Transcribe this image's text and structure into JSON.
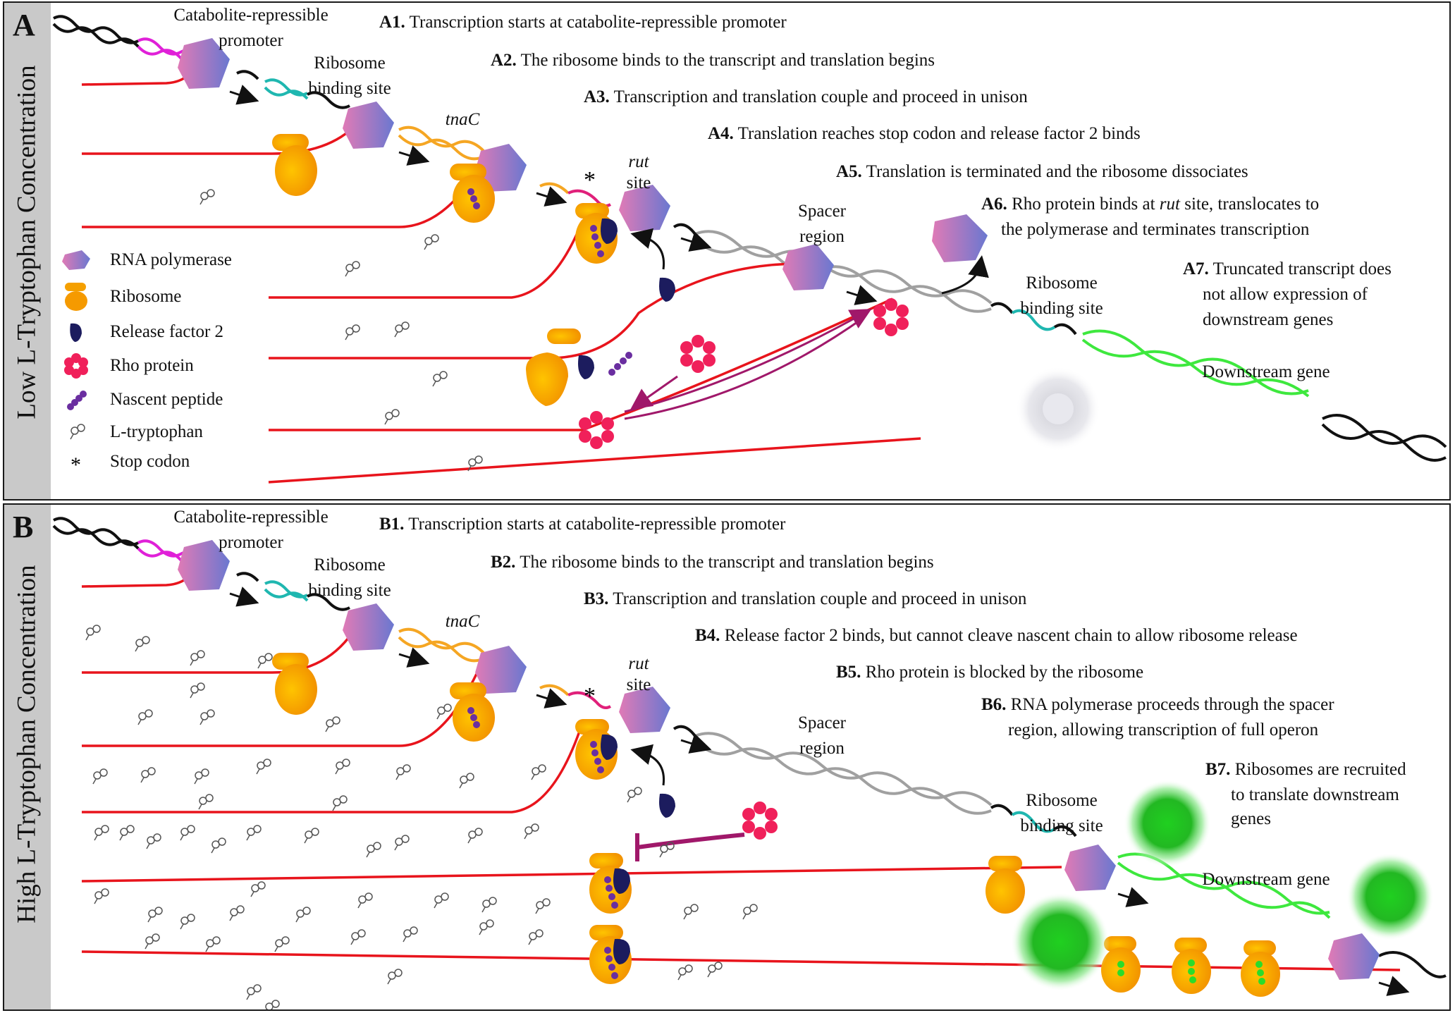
{
  "panel_a": {
    "letter": "A",
    "side_label": "Low L-Tryptophan Concentration",
    "steps": [
      {
        "id": "A1.",
        "text": " Transcription starts at catabolite-repressible promoter"
      },
      {
        "id": "A2.",
        "text": " The ribosome binds to the transcript and translation begins"
      },
      {
        "id": "A3.",
        "text": " Transcription and translation couple and proceed in unison"
      },
      {
        "id": "A4.",
        "text": " Translation reaches stop codon and release factor 2 binds"
      },
      {
        "id": "A5.",
        "text": " Translation is terminated and the ribosome dissociates"
      },
      {
        "id": "A6.",
        "pre": " Rho protein binds at ",
        "italic": "rut",
        "post": " site, translocates to",
        "line2": "the polymerase and terminates transcription"
      },
      {
        "id": "A7.",
        "text": " Truncated transcript does",
        "line2": "not allow expression of",
        "line3": "downstream genes"
      }
    ],
    "labels": {
      "promoter_1": "Catabolite-repressible",
      "promoter_2": "promoter",
      "rbs1_1": "Ribosome",
      "rbs1_2": "binding site",
      "tnac": "tnaC",
      "rut_1": "rut",
      "rut_2": "site",
      "spacer_1": "Spacer",
      "spacer_2": "region",
      "rbs2_1": "Ribosome",
      "rbs2_2": "binding site",
      "downstream": "Downstream gene"
    },
    "legend": [
      {
        "icon": "rna-polymerase-icon",
        "label": "RNA polymerase"
      },
      {
        "icon": "ribosome-icon",
        "label": "Ribosome"
      },
      {
        "icon": "release-factor-icon",
        "label": "Release factor 2"
      },
      {
        "icon": "rho-protein-icon",
        "label": "Rho protein"
      },
      {
        "icon": "nascent-peptide-icon",
        "label": "Nascent peptide"
      },
      {
        "icon": "tryptophan-icon",
        "label": "L-tryptophan"
      },
      {
        "icon": "stop-codon-icon",
        "label": "Stop codon"
      }
    ]
  },
  "panel_b": {
    "letter": "B",
    "side_label": "High L-Tryptophan Concentration",
    "steps": [
      {
        "id": "B1.",
        "text": " Transcription starts at catabolite-repressible promoter"
      },
      {
        "id": "B2.",
        "text": " The ribosome binds to the transcript and translation begins"
      },
      {
        "id": "B3.",
        "text": " Transcription and translation couple and proceed in unison"
      },
      {
        "id": "B4.",
        "text": " Release factor 2 binds, but cannot cleave nascent chain to allow ribosome release"
      },
      {
        "id": "B5.",
        "text": " Rho protein is blocked by the ribosome"
      },
      {
        "id": "B6.",
        "text": " RNA polymerase proceeds through the spacer",
        "line2": "region, allowing transcription of full operon"
      },
      {
        "id": "B7.",
        "text": " Ribosomes are recruited",
        "line2": "to translate downstream",
        "line3": "genes"
      }
    ],
    "labels": {
      "promoter_1": "Catabolite-repressible",
      "promoter_2": "promoter",
      "rbs1_1": "Ribosome",
      "rbs1_2": "binding site",
      "tnac": "tnaC",
      "rut_1": "rut",
      "rut_2": "site",
      "spacer_1": "Spacer",
      "spacer_2": "region",
      "rbs2_1": "Ribosome",
      "rbs2_2": "binding site",
      "downstream": "Downstream gene"
    }
  },
  "colors": {
    "transcript": "#e8141c",
    "promoter_dna": "#e020d8",
    "rbs_dna": "#1fb7b0",
    "tnac_dna": "#f5a623",
    "stop_dna": "#e0207a",
    "spacer_dna": "#a0a0a0",
    "gene_dna": "#3ee83e",
    "backbone_dna": "#111111",
    "rho": "#f0205a",
    "release_factor": "#1c1c5e",
    "peptide": "#6a2ea0",
    "arrow_purple": "#a0186a"
  }
}
